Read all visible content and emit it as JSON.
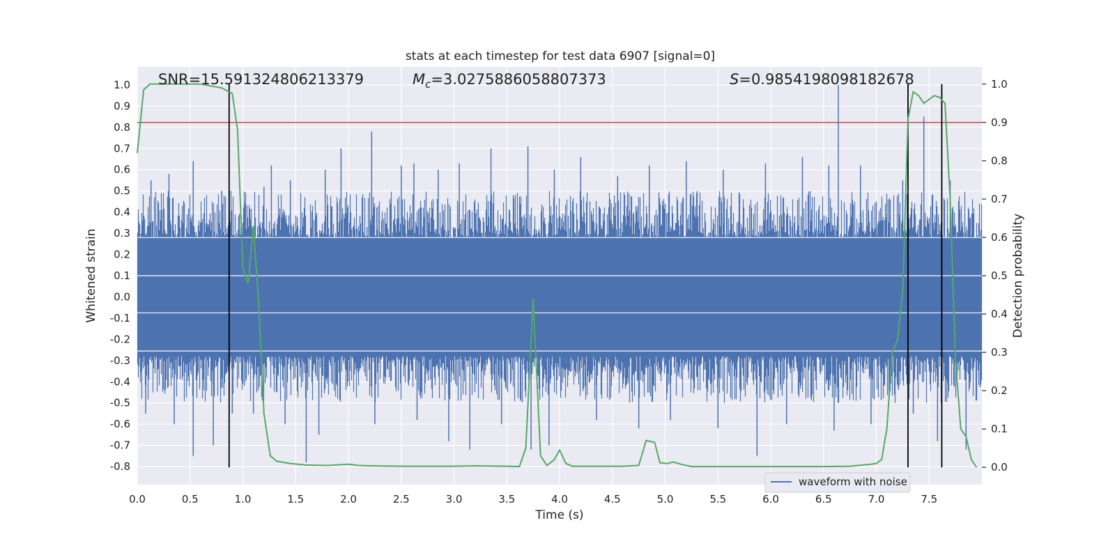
{
  "chart_data": {
    "type": "line",
    "title": "stats at each timestep for test data 6907 [signal=0]",
    "xlabel": "Time (s)",
    "ylabel": "Whitened strain",
    "y2label": "Detection probability",
    "xlim": [
      0.0,
      8.0
    ],
    "ylim": [
      -0.885,
      1.085
    ],
    "y2lim": [
      -0.045,
      1.045
    ],
    "xticks": [
      "0.0",
      "0.5",
      "1.0",
      "1.5",
      "2.0",
      "2.5",
      "3.0",
      "3.5",
      "4.0",
      "4.5",
      "5.0",
      "5.5",
      "6.0",
      "6.5",
      "7.0",
      "7.5"
    ],
    "yticks": [
      "-0.8",
      "-0.7",
      "-0.6",
      "-0.5",
      "-0.4",
      "-0.3",
      "-0.2",
      "-0.1",
      "0.0",
      "0.1",
      "0.2",
      "0.3",
      "0.4",
      "0.5",
      "0.6",
      "0.7",
      "0.8",
      "0.9",
      "1.0"
    ],
    "y2ticks": [
      "0.0",
      "0.1",
      "0.2",
      "0.3",
      "0.4",
      "0.5",
      "0.6",
      "0.7",
      "0.8",
      "0.9",
      "1.0"
    ],
    "grid": true,
    "legend_position": "lower right",
    "annotations": {
      "snr": "SNR=15.591324806213379",
      "mc_symbol": "M",
      "mc_sub": "c",
      "mc_value": "=3.0275886058807373",
      "s_symbol": "S",
      "s_value": "=0.9854198098182678"
    },
    "threshold_y2": 0.9,
    "vertical_lines_x": [
      0.87,
      7.3,
      7.62
    ],
    "series": [
      {
        "name": "waveform with noise",
        "kind": "noise-band",
        "color": "#4c72b0",
        "spikes": [
          {
            "x": 0.13,
            "y": 0.55
          },
          {
            "x": 0.3,
            "y": 0.58
          },
          {
            "x": 0.53,
            "y": 0.64
          },
          {
            "x": 0.8,
            "y": 0.5
          },
          {
            "x": 1.2,
            "y": 0.52
          },
          {
            "x": 1.27,
            "y": 0.62
          },
          {
            "x": 1.45,
            "y": 0.55
          },
          {
            "x": 1.78,
            "y": 0.6
          },
          {
            "x": 1.93,
            "y": 0.7
          },
          {
            "x": 2.22,
            "y": 0.78
          },
          {
            "x": 2.5,
            "y": 0.62
          },
          {
            "x": 2.62,
            "y": 0.63
          },
          {
            "x": 2.85,
            "y": 0.6
          },
          {
            "x": 3.05,
            "y": 0.63
          },
          {
            "x": 3.35,
            "y": 0.7
          },
          {
            "x": 3.7,
            "y": 0.71
          },
          {
            "x": 3.95,
            "y": 0.6
          },
          {
            "x": 4.2,
            "y": 0.66
          },
          {
            "x": 4.55,
            "y": 0.57
          },
          {
            "x": 4.85,
            "y": 0.62
          },
          {
            "x": 5.2,
            "y": 0.64
          },
          {
            "x": 5.55,
            "y": 0.6
          },
          {
            "x": 5.95,
            "y": 0.63
          },
          {
            "x": 6.3,
            "y": 0.66
          },
          {
            "x": 6.55,
            "y": 0.62
          },
          {
            "x": 6.64,
            "y": 1.0
          },
          {
            "x": 6.85,
            "y": 0.62
          },
          {
            "x": 7.25,
            "y": 0.55
          },
          {
            "x": 7.45,
            "y": 0.85
          },
          {
            "x": 7.7,
            "y": 0.55
          },
          {
            "x": 0.08,
            "y": -0.55
          },
          {
            "x": 0.35,
            "y": -0.6
          },
          {
            "x": 0.53,
            "y": -0.75
          },
          {
            "x": 0.72,
            "y": -0.7
          },
          {
            "x": 0.9,
            "y": -0.55
          },
          {
            "x": 1.1,
            "y": -0.55
          },
          {
            "x": 1.4,
            "y": -0.6
          },
          {
            "x": 1.6,
            "y": -0.78
          },
          {
            "x": 1.72,
            "y": -0.65
          },
          {
            "x": 2.25,
            "y": -0.6
          },
          {
            "x": 2.65,
            "y": -0.58
          },
          {
            "x": 2.95,
            "y": -0.68
          },
          {
            "x": 3.15,
            "y": -0.72
          },
          {
            "x": 3.45,
            "y": -0.6
          },
          {
            "x": 3.73,
            "y": -0.72
          },
          {
            "x": 3.9,
            "y": -0.7
          },
          {
            "x": 4.35,
            "y": -0.58
          },
          {
            "x": 4.75,
            "y": -0.62
          },
          {
            "x": 5.05,
            "y": -0.58
          },
          {
            "x": 5.5,
            "y": -0.62
          },
          {
            "x": 5.87,
            "y": -0.75
          },
          {
            "x": 6.15,
            "y": -0.6
          },
          {
            "x": 6.6,
            "y": -0.63
          },
          {
            "x": 6.95,
            "y": -0.6
          },
          {
            "x": 7.35,
            "y": -0.55
          },
          {
            "x": 7.58,
            "y": -0.68
          },
          {
            "x": 7.85,
            "y": -0.72
          }
        ]
      },
      {
        "name": "",
        "kind": "probability",
        "axis": "right",
        "color": "#55a868",
        "x": [
          0.0,
          0.06,
          0.12,
          0.2,
          0.3,
          0.4,
          0.5,
          0.6,
          0.7,
          0.8,
          0.9,
          0.95,
          1.0,
          1.05,
          1.1,
          1.15,
          1.2,
          1.26,
          1.32,
          1.45,
          1.6,
          1.8,
          2.0,
          2.1,
          2.2,
          2.5,
          3.0,
          3.2,
          3.5,
          3.62,
          3.68,
          3.75,
          3.82,
          3.88,
          3.95,
          4.0,
          4.06,
          4.12,
          4.4,
          4.6,
          4.75,
          4.82,
          4.9,
          4.95,
          5.02,
          5.08,
          5.15,
          5.25,
          5.5,
          6.0,
          6.5,
          6.75,
          6.95,
          7.0,
          7.05,
          7.1,
          7.15,
          7.2,
          7.25,
          7.3,
          7.35,
          7.4,
          7.45,
          7.5,
          7.55,
          7.6,
          7.65,
          7.7,
          7.75,
          7.8,
          7.85,
          7.9,
          7.95
        ],
        "y": [
          0.82,
          0.985,
          1.0,
          1.0,
          1.0,
          1.0,
          1.0,
          1.0,
          0.995,
          0.99,
          0.975,
          0.88,
          0.52,
          0.48,
          0.63,
          0.43,
          0.14,
          0.03,
          0.016,
          0.01,
          0.006,
          0.005,
          0.008,
          0.005,
          0.004,
          0.003,
          0.003,
          0.004,
          0.003,
          0.002,
          0.05,
          0.44,
          0.03,
          0.005,
          0.02,
          0.045,
          0.01,
          0.003,
          0.003,
          0.003,
          0.005,
          0.07,
          0.065,
          0.012,
          0.01,
          0.014,
          0.008,
          0.002,
          0.002,
          0.002,
          0.002,
          0.003,
          0.008,
          0.01,
          0.02,
          0.1,
          0.3,
          0.33,
          0.46,
          0.91,
          0.98,
          0.97,
          0.95,
          0.96,
          0.97,
          0.965,
          0.95,
          0.7,
          0.28,
          0.1,
          0.08,
          0.02,
          0.0
        ]
      }
    ]
  }
}
